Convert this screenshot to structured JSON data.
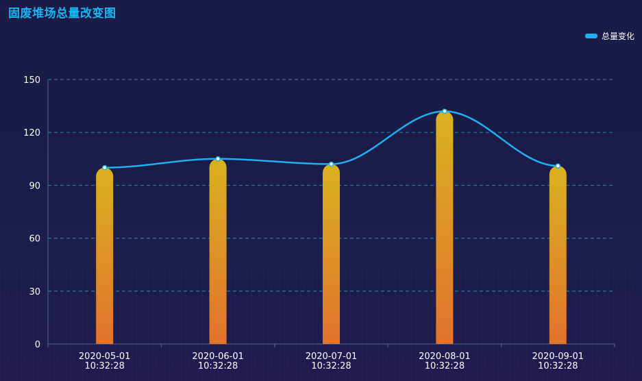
{
  "colors": {
    "title": "#19b5f3",
    "line": "#1fb0f2",
    "bar_top": "#d9b21f",
    "bar_bottom": "#e2722d",
    "grid": "#2a9bc5",
    "axis_text": "#ffffff"
  },
  "chart_data": {
    "type": "bar",
    "title": "固废堆场总量改变图",
    "legend_position": "top-right",
    "grid": true,
    "ylim": [
      0,
      150
    ],
    "yticks": [
      0,
      30,
      60,
      90,
      120,
      150
    ],
    "categories": [
      [
        "2020-05-01",
        "10:32:28"
      ],
      [
        "2020-06-01",
        "10:32:28"
      ],
      [
        "2020-07-01",
        "10:32:28"
      ],
      [
        "2020-08-01",
        "10:32:28"
      ],
      [
        "2020-09-01",
        "10:32:28"
      ]
    ],
    "series": [
      {
        "type": "bar",
        "values": [
          100,
          105,
          102,
          132,
          101
        ]
      },
      {
        "name": "总量变化",
        "type": "line",
        "smooth": true,
        "values": [
          100,
          105,
          102,
          132,
          101
        ]
      }
    ]
  }
}
